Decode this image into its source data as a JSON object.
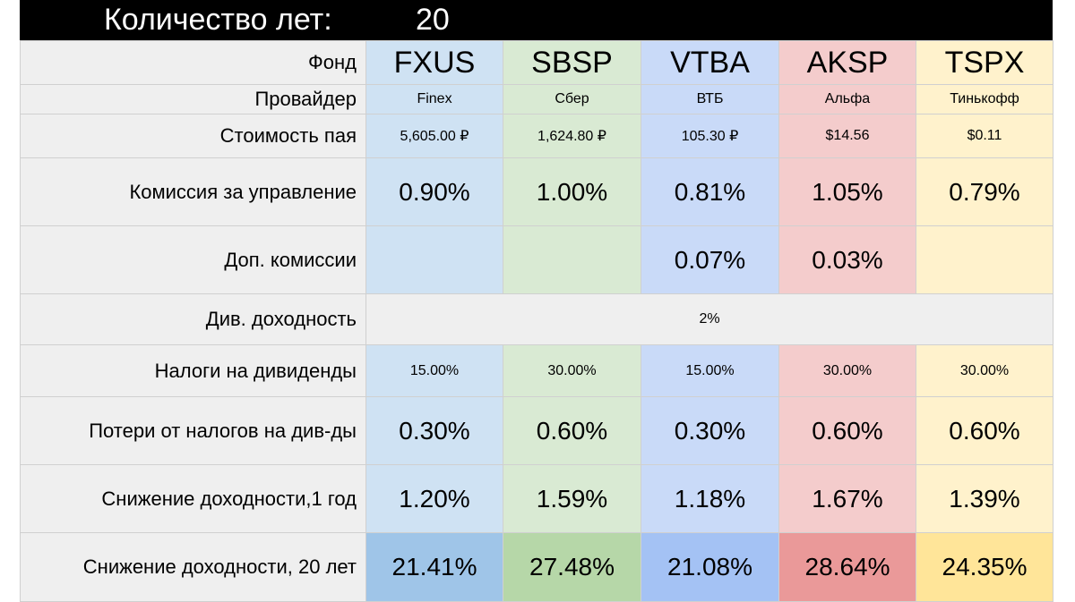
{
  "header": {
    "label": "Количество лет:",
    "value": "20"
  },
  "table": {
    "rows": [
      {
        "label": "Фонд",
        "cells": [
          "FXUS",
          "SBSP",
          "VTBA",
          "AKSP",
          "TSPX"
        ]
      },
      {
        "label": "Провайдер",
        "cells": [
          "Finex",
          "Сбер",
          "ВТБ",
          "Альфа",
          "Тинькофф"
        ]
      },
      {
        "label": "Стоимость пая",
        "cells": [
          "5,605.00 ₽",
          "1,624.80 ₽",
          "105.30 ₽",
          "$14.56",
          "$0.11"
        ]
      },
      {
        "label": "Комиссия за управление",
        "cells": [
          "0.90%",
          "1.00%",
          "0.81%",
          "1.05%",
          "0.79%"
        ]
      },
      {
        "label": "Доп. комиссии",
        "cells": [
          null,
          null,
          "0.07%",
          "0.03%",
          null
        ]
      },
      {
        "label": "Див. доходность",
        "cells": [
          "2%"
        ]
      },
      {
        "label": "Налоги на дивиденды",
        "cells": [
          "15.00%",
          "30.00%",
          "15.00%",
          "30.00%",
          "30.00%"
        ]
      },
      {
        "label": "Потери от налогов на див-ды",
        "cells": [
          "0.30%",
          "0.60%",
          "0.30%",
          "0.60%",
          "0.60%"
        ]
      },
      {
        "label": "Снижение доходности,1 год",
        "cells": [
          "1.20%",
          "1.59%",
          "1.18%",
          "1.67%",
          "1.39%"
        ]
      },
      {
        "label": "Снижение доходности, 20 лет",
        "cells": [
          "21.41%",
          "27.48%",
          "21.08%",
          "28.64%",
          "24.35%"
        ]
      }
    ]
  }
}
